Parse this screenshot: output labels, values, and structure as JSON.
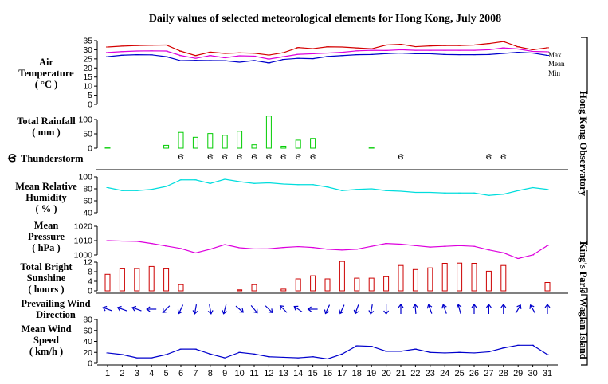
{
  "page": {
    "title": "Daily values of selected meteorological elements for Hong Kong, July 2008",
    "stations": [
      {
        "name": "Hong Kong Observatory"
      },
      {
        "name": "King's Park"
      },
      {
        "name": "Waglan Island"
      }
    ]
  },
  "colors": {
    "max": "#d40000",
    "mean": "#dd00dd",
    "min": "#0000cc",
    "rainfall": "#00cc00",
    "humidity": "#00dddd",
    "pressure": "#dd00dd",
    "sunshine": "#cc0000",
    "wind": "#0000cc"
  },
  "chart_data": [
    {
      "type": "line",
      "ylabel": "Air Temperature (°C)",
      "ylim": [
        0,
        35
      ],
      "yticks": [
        "0",
        "5",
        "10",
        "15",
        "20",
        "25",
        "30",
        "35"
      ],
      "x": [
        1,
        2,
        3,
        4,
        5,
        6,
        7,
        8,
        9,
        10,
        11,
        12,
        13,
        14,
        15,
        16,
        17,
        18,
        19,
        20,
        21,
        22,
        23,
        24,
        25,
        26,
        27,
        28,
        29,
        30,
        31
      ],
      "series": [
        {
          "name": "Max",
          "values": [
            31.5,
            32.0,
            32.3,
            32.5,
            32.6,
            29.2,
            26.8,
            28.7,
            28.0,
            28.3,
            28.1,
            27.1,
            28.4,
            31.2,
            30.6,
            31.6,
            31.5,
            31.0,
            30.5,
            32.6,
            33.0,
            31.7,
            32.1,
            32.3,
            32.3,
            32.6,
            33.4,
            34.5,
            31.6,
            30.0,
            31.1
          ]
        },
        {
          "name": "Mean",
          "values": [
            28.5,
            29.0,
            29.3,
            29.4,
            29.3,
            26.8,
            25.3,
            26.8,
            25.6,
            26.7,
            26.5,
            24.9,
            26.2,
            27.5,
            27.8,
            28.2,
            28.6,
            29.4,
            29.7,
            29.6,
            30.0,
            29.7,
            29.7,
            29.7,
            29.7,
            29.7,
            30.0,
            31.0,
            30.4,
            29.1,
            28.9
          ]
        },
        {
          "name": "Min",
          "values": [
            26.2,
            27.0,
            27.3,
            27.2,
            26.2,
            24.0,
            24.2,
            24.1,
            24.0,
            23.2,
            24.1,
            22.8,
            24.7,
            25.3,
            25.1,
            26.3,
            26.8,
            27.3,
            27.4,
            27.9,
            28.2,
            27.8,
            27.8,
            27.4,
            27.3,
            27.3,
            27.4,
            28.0,
            28.6,
            28.2,
            26.9
          ]
        }
      ]
    },
    {
      "type": "bar",
      "ylabel": "Total Rainfall (mm)",
      "ylim": [
        0,
        100
      ],
      "yticks": [
        "0",
        "50",
        "100"
      ],
      "categories": [
        1,
        2,
        3,
        4,
        5,
        6,
        7,
        8,
        9,
        10,
        11,
        12,
        13,
        14,
        15,
        16,
        17,
        18,
        19,
        20,
        21,
        22,
        23,
        24,
        25,
        26,
        27,
        28,
        29,
        30,
        31
      ],
      "values": [
        1,
        0,
        0,
        0,
        10,
        55,
        38,
        51,
        45,
        59,
        12,
        112,
        7,
        28,
        34,
        0,
        0,
        0,
        1,
        0,
        0,
        0,
        0,
        0,
        0,
        0,
        0,
        0,
        0,
        0,
        0
      ]
    },
    {
      "type": "scatter",
      "label": "Thunderstorm",
      "days": [
        6,
        8,
        9,
        10,
        11,
        12,
        13,
        14,
        15,
        21,
        27,
        28
      ]
    },
    {
      "type": "line",
      "ylabel": "Mean Relative Humidity (%)",
      "ylim": [
        40,
        100
      ],
      "yticks": [
        "40",
        "60",
        "80",
        "100"
      ],
      "x": [
        1,
        2,
        3,
        4,
        5,
        6,
        7,
        8,
        9,
        10,
        11,
        12,
        13,
        14,
        15,
        16,
        17,
        18,
        19,
        20,
        21,
        22,
        23,
        24,
        25,
        26,
        27,
        28,
        29,
        30,
        31
      ],
      "values": [
        82,
        77,
        77,
        79,
        84,
        95,
        95,
        89,
        96,
        92,
        89,
        90,
        88,
        87,
        87,
        83,
        77,
        79,
        80,
        77,
        76,
        74,
        74,
        73,
        73,
        73,
        69,
        71,
        77,
        82,
        79
      ]
    },
    {
      "type": "line",
      "ylabel": "Mean Pressure (hPa)",
      "ylim": [
        1000,
        1020
      ],
      "yticks": [
        "1000",
        "1010",
        "1020"
      ],
      "x": [
        1,
        2,
        3,
        4,
        5,
        6,
        7,
        8,
        9,
        10,
        11,
        12,
        13,
        14,
        15,
        16,
        17,
        18,
        19,
        20,
        21,
        22,
        23,
        24,
        25,
        26,
        27,
        28,
        29,
        30,
        31
      ],
      "values": [
        1010,
        1009.7,
        1009.5,
        1008,
        1006.2,
        1004.5,
        1001.4,
        1004,
        1007.2,
        1005,
        1004.2,
        1004.3,
        1005.2,
        1005.8,
        1005.2,
        1004,
        1003.4,
        1004,
        1006,
        1008,
        1007.5,
        1006.5,
        1005.5,
        1006,
        1006.5,
        1006,
        1003.5,
        1001.5,
        997.5,
        1000,
        1006.5
      ]
    },
    {
      "type": "bar",
      "ylabel": "Total Bright Sunshine (hours)",
      "ylim": [
        0,
        12
      ],
      "yticks": [
        "0",
        "4",
        "8",
        "12"
      ],
      "categories": [
        1,
        2,
        3,
        4,
        5,
        6,
        7,
        8,
        9,
        10,
        11,
        12,
        13,
        14,
        15,
        16,
        17,
        18,
        19,
        20,
        21,
        22,
        23,
        24,
        25,
        26,
        27,
        28,
        29,
        30,
        31
      ],
      "values": [
        6.9,
        9.2,
        9.3,
        10.2,
        9.2,
        2.6,
        0,
        0,
        0,
        0.4,
        2.6,
        0,
        0.7,
        5.0,
        6.3,
        5.0,
        12.3,
        5.3,
        5.3,
        5.9,
        10.6,
        8.9,
        9.6,
        11.5,
        11.6,
        11.5,
        8.2,
        10.6,
        0,
        0,
        3.5
      ]
    },
    {
      "type": "scatter",
      "label": "Prevailing Wind Direction",
      "directions_deg": [
        200,
        200,
        200,
        180,
        135,
        115,
        100,
        80,
        105,
        40,
        50,
        45,
        225,
        215,
        180,
        115,
        115,
        110,
        100,
        90,
        270,
        265,
        250,
        250,
        255,
        270,
        270,
        270,
        300,
        240,
        270
      ]
    },
    {
      "type": "line",
      "ylabel": "Mean Wind Speed (km/h)",
      "ylim": [
        0,
        80
      ],
      "yticks": [
        "0",
        "20",
        "40",
        "60",
        "80"
      ],
      "x": [
        1,
        2,
        3,
        4,
        5,
        6,
        7,
        8,
        9,
        10,
        11,
        12,
        13,
        14,
        15,
        16,
        17,
        18,
        19,
        20,
        21,
        22,
        23,
        24,
        25,
        26,
        27,
        28,
        29,
        30,
        31
      ],
      "values": [
        19,
        16,
        10,
        10,
        16,
        26,
        26,
        17,
        10,
        20,
        17,
        12,
        11,
        10,
        12,
        8,
        17,
        32,
        31,
        22,
        22,
        26,
        20,
        19,
        20,
        19,
        21,
        28,
        33,
        33,
        16
      ]
    }
  ],
  "labels": {
    "temperature": [
      "Air",
      "Temperature",
      "( °C )"
    ],
    "rainfall": [
      "Total Rainfall",
      "( mm )"
    ],
    "thunderstorm": "Thunderstorm",
    "humidity": [
      "Mean Relative",
      "Humidity",
      "( % )"
    ],
    "pressure": [
      "Mean",
      "Pressure",
      "( hPa )"
    ],
    "sunshine": [
      "Total Bright",
      "Sunshine",
      "( hours )"
    ],
    "winddir": [
      "Prevailing Wind",
      "Direction"
    ],
    "windspeed": [
      "Mean Wind",
      "Speed",
      "( km/h )"
    ],
    "legend_max": "Max",
    "legend_mean": "Mean",
    "legend_min": "Min",
    "thunder_symbol": "Ꞡ",
    "x_ticks": [
      "1",
      "2",
      "3",
      "4",
      "5",
      "6",
      "7",
      "8",
      "9",
      "10",
      "11",
      "12",
      "13",
      "14",
      "15",
      "16",
      "17",
      "18",
      "19",
      "20",
      "21",
      "22",
      "23",
      "24",
      "25",
      "26",
      "27",
      "28",
      "29",
      "30",
      "31"
    ]
  }
}
